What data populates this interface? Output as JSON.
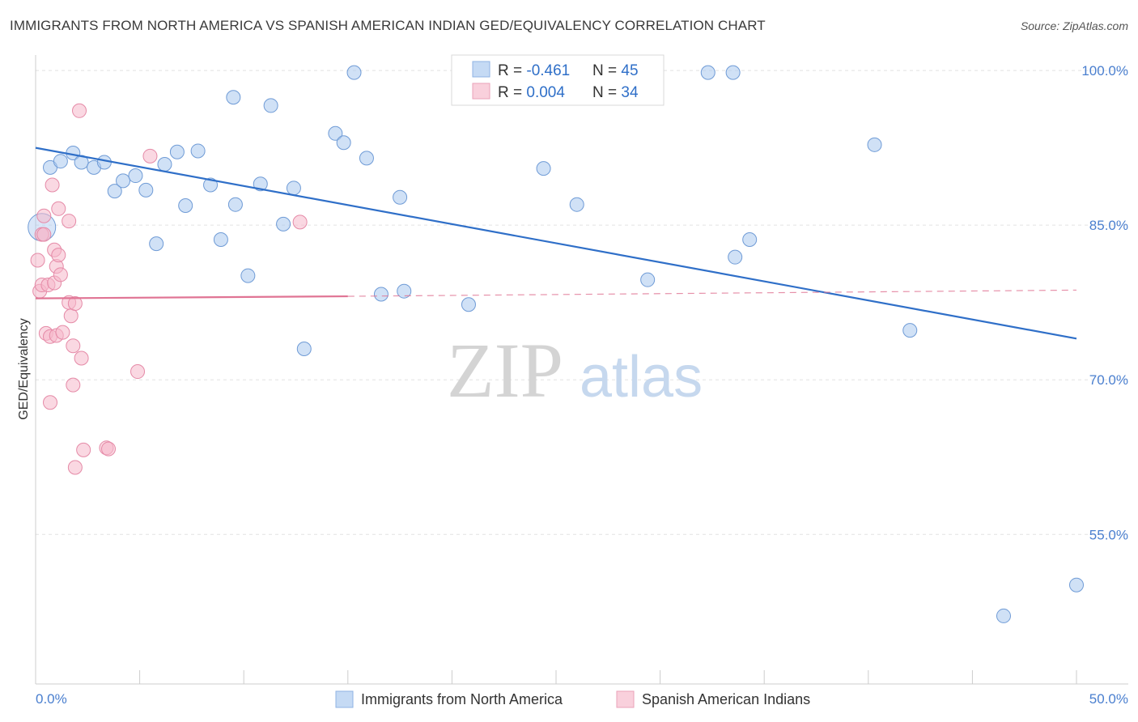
{
  "header": {
    "title": "IMMIGRANTS FROM NORTH AMERICA VS SPANISH AMERICAN INDIAN GED/EQUIVALENCY CORRELATION CHART",
    "source": "Source: ZipAtlas.com"
  },
  "watermark": {
    "zip": "ZIP",
    "atlas": "atlas"
  },
  "legend": {
    "rows": [
      {
        "r_label": "R = ",
        "r_value": "-0.461",
        "n_label": "N = ",
        "n_value": "45"
      },
      {
        "r_label": "R = ",
        "r_value": "0.004",
        "n_label": "N = ",
        "n_value": "34"
      }
    ]
  },
  "bottom_legend": [
    {
      "label": "Immigrants from North America"
    },
    {
      "label": "Spanish American Indians"
    }
  ],
  "chart_data": {
    "type": "scatter",
    "title": "IMMIGRANTS FROM NORTH AMERICA VS SPANISH AMERICAN INDIAN GED/EQUIVALENCY CORRELATION CHART",
    "ylabel": "GED/Equivalency",
    "xlabel": "",
    "x_tick_labels": [
      "0.0%",
      "50.0%"
    ],
    "y_tick_labels": [
      "100.0%",
      "85.0%",
      "70.0%",
      "55.0%"
    ],
    "y_ticks": [
      100,
      85,
      70,
      55
    ],
    "xlim": [
      0,
      50
    ],
    "ylim": [
      40.5,
      101.5
    ],
    "grid": true,
    "colors": {
      "blue_fill": "#aac8ef",
      "blue_line": "#2f6fc8",
      "pink_fill": "#f6b8cb",
      "pink_line": "#e07494",
      "tick_label": "#4a7fcf"
    },
    "series": [
      {
        "name": "Immigrants from North America",
        "color": "#aac8ef",
        "points": [
          [
            0.3,
            84.8
          ],
          [
            0.7,
            90.6
          ],
          [
            1.2,
            91.2
          ],
          [
            1.8,
            92.0
          ],
          [
            2.2,
            91.1
          ],
          [
            2.8,
            90.6
          ],
          [
            3.3,
            91.1
          ],
          [
            3.8,
            88.3
          ],
          [
            4.2,
            89.3
          ],
          [
            4.8,
            89.8
          ],
          [
            5.3,
            88.4
          ],
          [
            5.8,
            83.2
          ],
          [
            6.2,
            90.9
          ],
          [
            6.8,
            92.1
          ],
          [
            7.2,
            86.9
          ],
          [
            7.8,
            92.2
          ],
          [
            8.4,
            88.9
          ],
          [
            8.9,
            83.6
          ],
          [
            9.5,
            97.4
          ],
          [
            9.6,
            87.0
          ],
          [
            10.2,
            80.1
          ],
          [
            10.8,
            89.0
          ],
          [
            11.3,
            96.6
          ],
          [
            11.9,
            85.1
          ],
          [
            12.4,
            88.6
          ],
          [
            12.9,
            73.0
          ],
          [
            14.4,
            93.9
          ],
          [
            14.8,
            93.0
          ],
          [
            15.3,
            99.8
          ],
          [
            15.9,
            91.5
          ],
          [
            16.6,
            78.3
          ],
          [
            17.5,
            87.7
          ],
          [
            17.7,
            78.6
          ],
          [
            20.8,
            77.3
          ],
          [
            24.4,
            90.5
          ],
          [
            26.0,
            87.0
          ],
          [
            29.4,
            79.7
          ],
          [
            32.3,
            99.8
          ],
          [
            33.5,
            99.8
          ],
          [
            33.6,
            81.9
          ],
          [
            34.3,
            83.6
          ],
          [
            40.3,
            92.8
          ],
          [
            42.0,
            74.8
          ],
          [
            46.5,
            47.1
          ],
          [
            50.0,
            50.1
          ]
        ]
      },
      {
        "name": "Spanish American Indians",
        "color": "#f6b8cb",
        "points": [
          [
            0.1,
            81.6
          ],
          [
            0.2,
            78.6
          ],
          [
            0.3,
            79.2
          ],
          [
            0.3,
            84.1
          ],
          [
            0.4,
            85.9
          ],
          [
            0.4,
            84.1
          ],
          [
            0.5,
            74.5
          ],
          [
            0.6,
            79.2
          ],
          [
            0.7,
            74.2
          ],
          [
            0.7,
            67.8
          ],
          [
            0.8,
            88.9
          ],
          [
            0.9,
            82.6
          ],
          [
            0.9,
            79.4
          ],
          [
            1.0,
            74.3
          ],
          [
            1.0,
            81.0
          ],
          [
            1.1,
            82.1
          ],
          [
            1.1,
            86.6
          ],
          [
            1.2,
            80.2
          ],
          [
            1.3,
            74.6
          ],
          [
            1.6,
            85.4
          ],
          [
            1.6,
            77.5
          ],
          [
            1.7,
            76.2
          ],
          [
            1.8,
            69.5
          ],
          [
            1.8,
            73.3
          ],
          [
            1.9,
            77.4
          ],
          [
            1.9,
            61.5
          ],
          [
            2.1,
            96.1
          ],
          [
            2.2,
            72.1
          ],
          [
            2.3,
            63.2
          ],
          [
            3.4,
            63.4
          ],
          [
            3.5,
            63.3
          ],
          [
            4.9,
            70.8
          ],
          [
            5.5,
            91.7
          ],
          [
            12.7,
            85.3
          ]
        ]
      }
    ],
    "trendlines": [
      {
        "series": "Immigrants from North America",
        "from": [
          0.0,
          92.5
        ],
        "to": [
          50.0,
          74.0
        ],
        "style": "solid"
      },
      {
        "series": "Spanish American Indians",
        "from": [
          0.0,
          77.9
        ],
        "to": [
          15.0,
          78.1
        ],
        "style": "solid"
      },
      {
        "series": "Spanish American Indians",
        "from": [
          15.0,
          78.1
        ],
        "to": [
          50.0,
          78.7
        ],
        "style": "dashed"
      }
    ]
  }
}
